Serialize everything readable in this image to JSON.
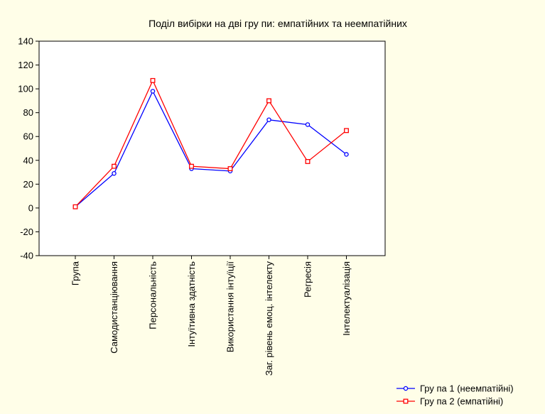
{
  "chart_data": {
    "type": "line",
    "title": "Поділ вибірки на дві гру пи: емпатійних та неемпатійних",
    "xlabel": "",
    "ylabel": "",
    "ylim": [
      -40,
      140
    ],
    "yticks": [
      -40,
      -20,
      0,
      20,
      40,
      60,
      80,
      100,
      120,
      140
    ],
    "categories": [
      "Група",
      "Самодистанціювання",
      "Персональність",
      "Інтуїтивна здатність",
      "Використання інтуїції",
      "Заг. рівень емоц. інтелекту",
      "Регресія",
      "Інтелектуалізація"
    ],
    "series": [
      {
        "name": "Гру па 1 (неемпатійні)",
        "color": "#0000ff",
        "marker": "circle",
        "values": [
          1,
          29,
          98,
          33,
          31,
          74,
          70,
          45
        ]
      },
      {
        "name": "Гру па 2 (емпатійні)",
        "color": "#ff0000",
        "marker": "square",
        "values": [
          1,
          35,
          107,
          35,
          33,
          90,
          39,
          65
        ]
      }
    ],
    "grid": false,
    "legend_position": "bottom-right"
  }
}
